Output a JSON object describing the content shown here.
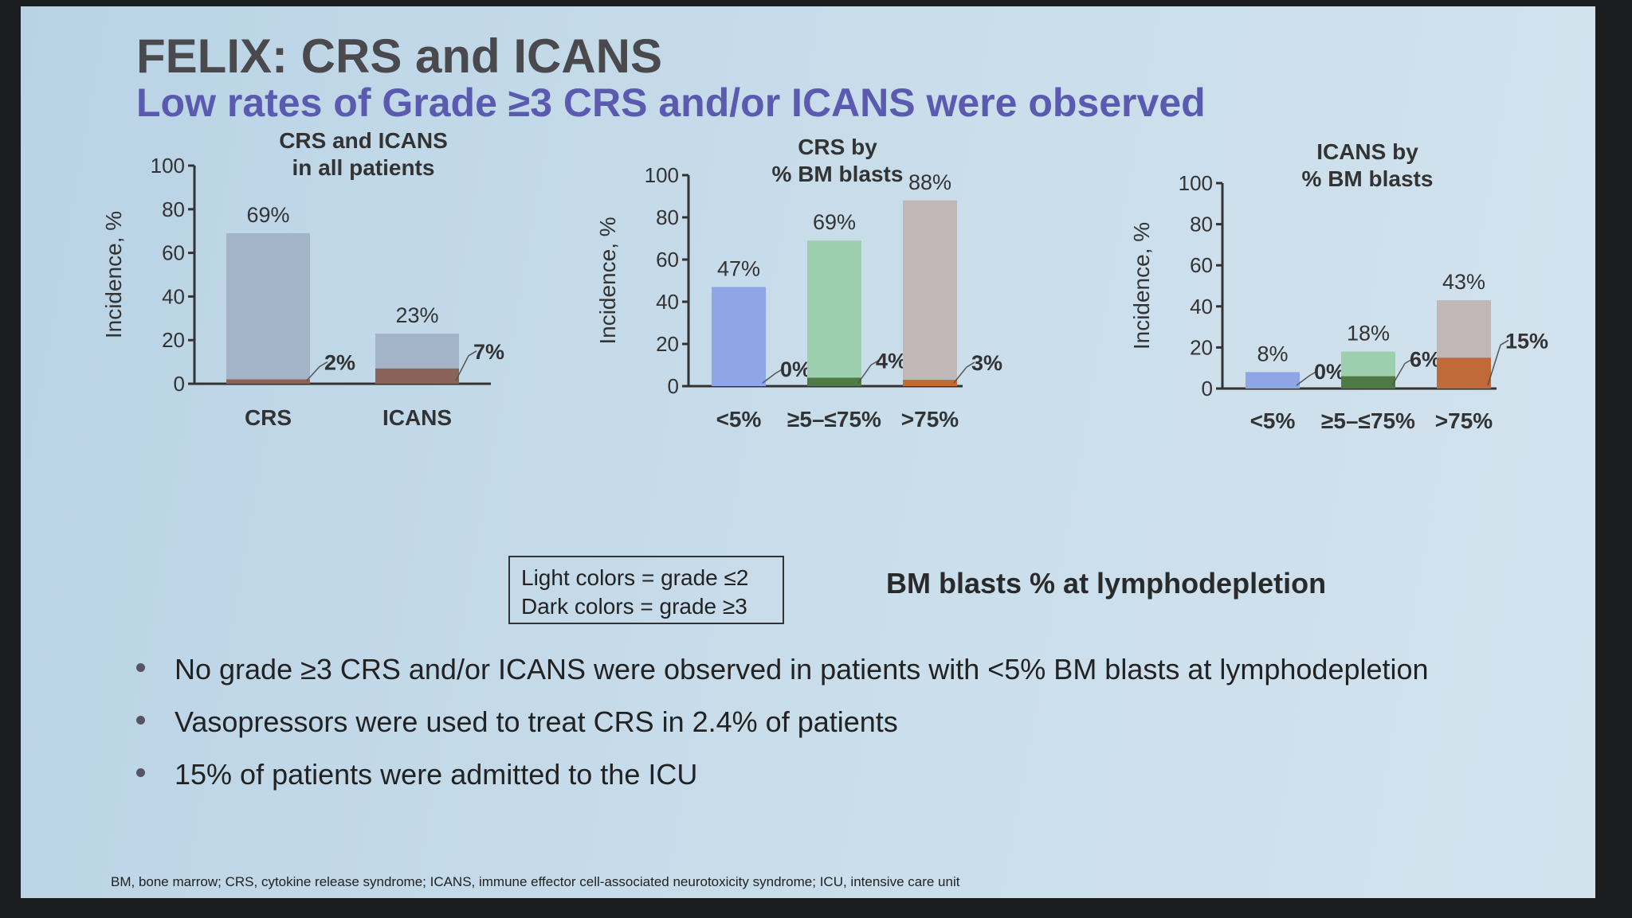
{
  "slide": {
    "title": "FELIX: CRS and ICANS",
    "subtitle": "Low rates of Grade ≥3 CRS and/or ICANS were observed",
    "legend_box": {
      "line1": "Light colors = grade ≤2",
      "line2": "Dark colors = grade ≥3"
    },
    "group_axis_label": "BM blasts % at lymphodepletion",
    "bullets": [
      "No grade ≥3 CRS and/or ICANS were observed in patients with <5% BM blasts at lymphodepletion",
      "Vasopressors were used to treat CRS in 2.4% of patients",
      "15% of patients were admitted to the ICU"
    ],
    "footnote": "BM, bone marrow; CRS, cytokine release syndrome; ICANS, immune effector cell-associated neurotoxicity syndrome; ICU, intensive care unit"
  },
  "chart_data": [
    {
      "type": "bar",
      "title": "CRS and ICANS in all patients",
      "ylabel": "Incidence, %",
      "ylim": [
        0,
        100
      ],
      "yticks": [
        0,
        20,
        40,
        60,
        80,
        100
      ],
      "categories": [
        "CRS",
        "ICANS"
      ],
      "series": [
        {
          "values": [
            69,
            23
          ]
        },
        {
          "values": [
            2,
            7
          ]
        }
      ],
      "total_labels": [
        "69%",
        "23%"
      ],
      "grade3_labels": [
        "2%",
        "7%"
      ],
      "colors": {
        "light": [
          "#a3b3c8",
          "#a3b3c8"
        ],
        "dark": [
          "#8a6258",
          "#8a6258"
        ]
      }
    },
    {
      "type": "bar",
      "title": "CRS by % BM blasts",
      "ylabel": "Incidence, %",
      "ylim": [
        0,
        100
      ],
      "yticks": [
        0,
        20,
        40,
        60,
        80,
        100
      ],
      "categories": [
        "<5%",
        "≥5–≤75%",
        ">75%"
      ],
      "series": [
        {
          "values": [
            47,
            69,
            88
          ]
        },
        {
          "values": [
            0,
            4,
            3
          ]
        }
      ],
      "total_labels": [
        "47%",
        "69%",
        "88%"
      ],
      "grade3_labels": [
        "0%",
        "4%",
        "3%"
      ],
      "colors": {
        "light": [
          "#8ea6e6",
          "#9dcfae",
          "#c2b7b7"
        ],
        "dark": [
          "#3a5aa8",
          "#4f7a45",
          "#c06a3a"
        ]
      }
    },
    {
      "type": "bar",
      "title": "ICANS by % BM blasts",
      "ylabel": "Incidence, %",
      "ylim": [
        0,
        100
      ],
      "yticks": [
        0,
        20,
        40,
        60,
        80,
        100
      ],
      "categories": [
        "<5%",
        "≥5–≤75%",
        ">75%"
      ],
      "series": [
        {
          "values": [
            8,
            18,
            43
          ]
        },
        {
          "values": [
            0,
            6,
            15
          ]
        }
      ],
      "total_labels": [
        "8%",
        "18%",
        "43%"
      ],
      "grade3_labels": [
        "0%",
        "6%",
        "15%"
      ],
      "colors": {
        "light": [
          "#8ea6e6",
          "#9dcfae",
          "#c2b7b7"
        ],
        "dark": [
          "#3a5aa8",
          "#4f7a45",
          "#c06a3a"
        ]
      }
    }
  ]
}
